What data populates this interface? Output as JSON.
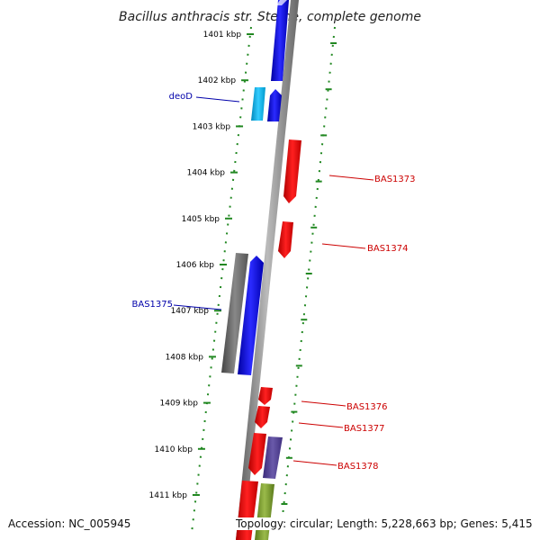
{
  "title": "Bacillus anthracis str. Sterne, complete genome",
  "accession": "Accession: NC_005945",
  "summary": "Topology: circular; Length: 5,228,663 bp; Genes: 5,415",
  "kbp_labels": [
    "1401 kbp",
    "1402 kbp",
    "1403 kbp",
    "1404 kbp",
    "1405 kbp",
    "1406 kbp",
    "1407 kbp",
    "1408 kbp",
    "1409 kbp",
    "1410 kbp",
    "1411 kbp"
  ],
  "colors": {
    "forward": "#1010e0",
    "reverse": "#ee1010",
    "forward_light": "#22aadd",
    "gray_feature": "#666666",
    "purple_feature": "#5a4a9a",
    "olive_feature": "#7a9a2a",
    "tick": "#228822",
    "backbone": "#888888"
  },
  "gene_labels": [
    {
      "text": "deoD",
      "color": "#0000aa"
    },
    {
      "text": "BAS1373",
      "color": "#cc0000"
    },
    {
      "text": "BAS1374",
      "color": "#cc0000"
    },
    {
      "text": "BAS1375",
      "color": "#0000aa"
    },
    {
      "text": "BAS1376",
      "color": "#cc0000"
    },
    {
      "text": "BAS1377",
      "color": "#cc0000"
    },
    {
      "text": "BAS1378",
      "color": "#cc0000"
    }
  ]
}
